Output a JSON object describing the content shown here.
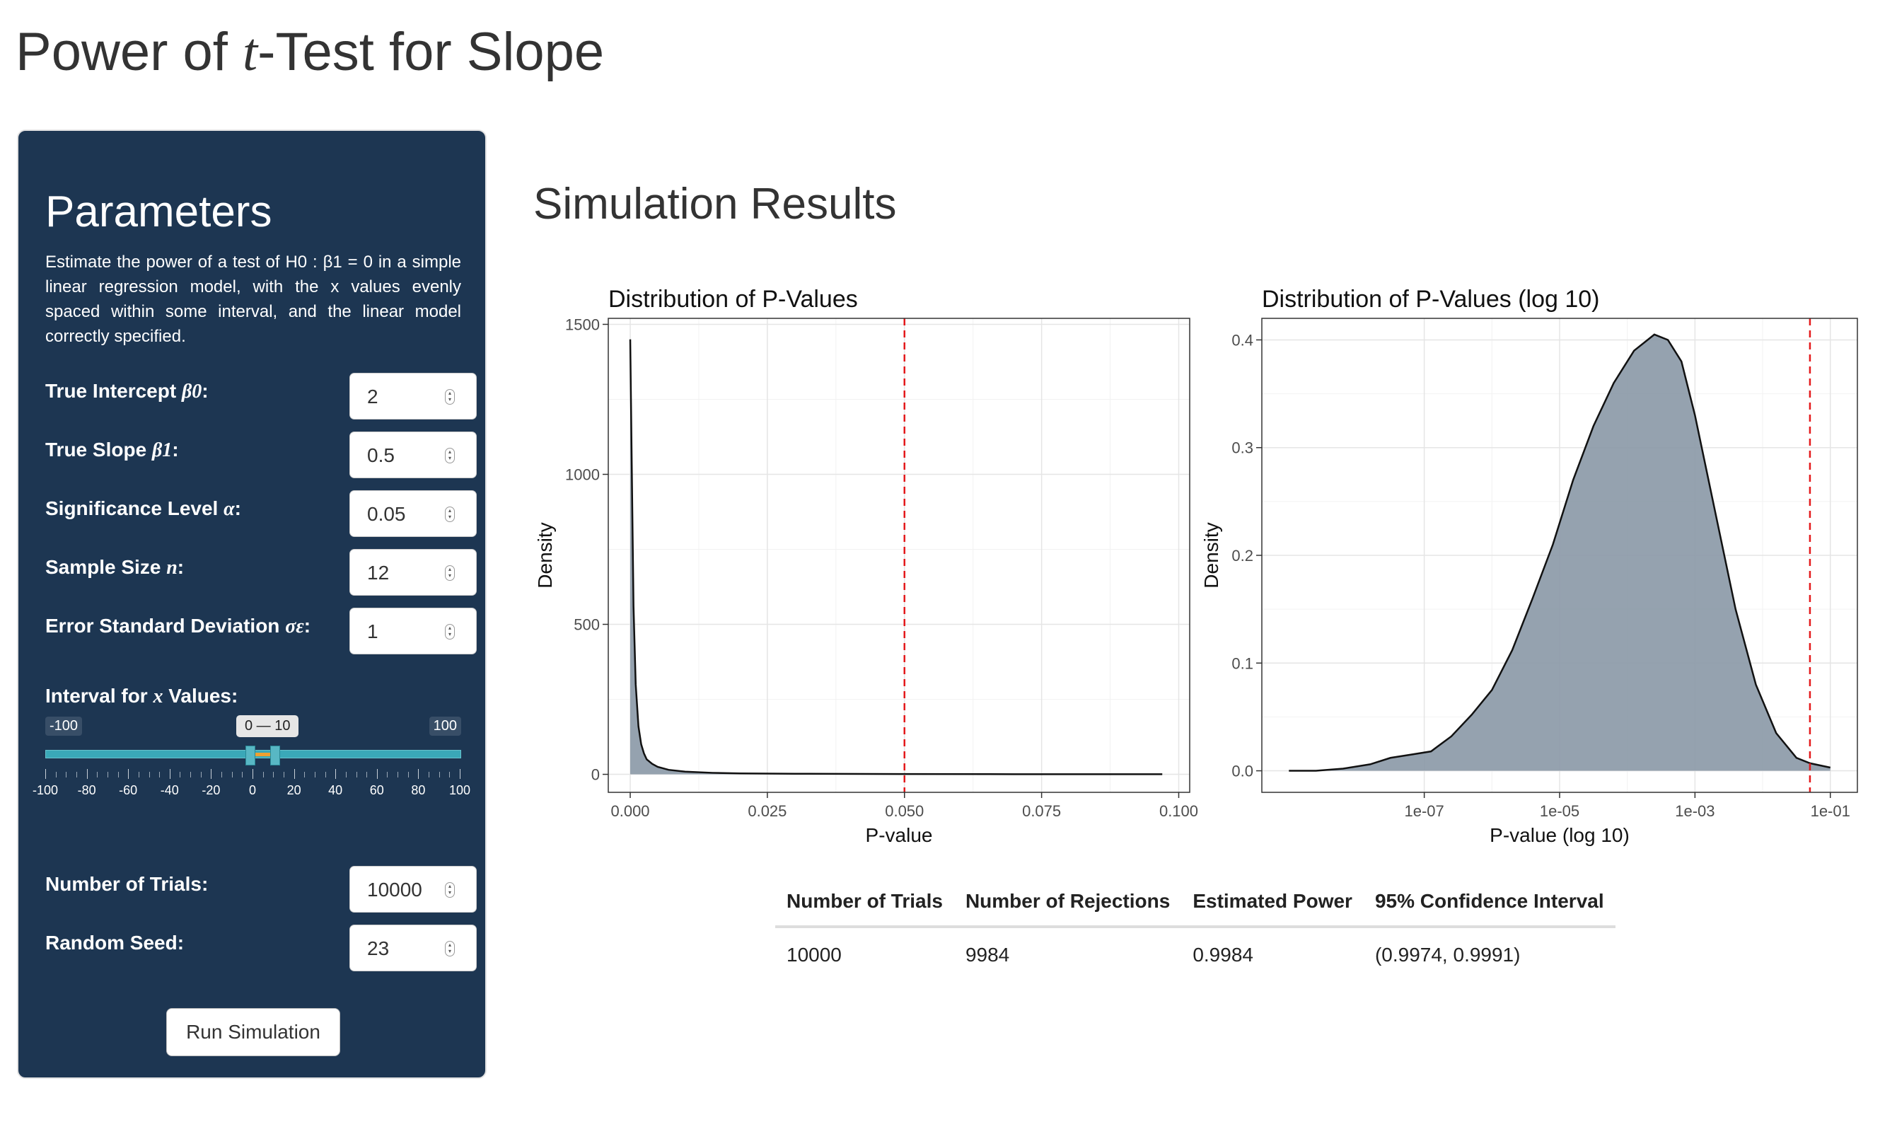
{
  "page": {
    "title_prefix": "Power of ",
    "title_var": "t",
    "title_suffix": "-Test for Slope"
  },
  "parameters": {
    "heading": "Parameters",
    "description": "Estimate the power of a test of H0 : β1 = 0 in a simple linear regression model, with the x values evenly spaced within some interval, and the linear model correctly specified.",
    "fields": [
      {
        "label_text": "True Intercept ",
        "label_math": "β0",
        "label_end": ":",
        "value": "2"
      },
      {
        "label_text": "True Slope ",
        "label_math": "β1",
        "label_end": ":",
        "value": "0.5"
      },
      {
        "label_text": "Significance Level ",
        "label_math": "α",
        "label_end": ":",
        "value": "0.05"
      },
      {
        "label_text": "Sample Size ",
        "label_math": "n",
        "label_end": ":",
        "value": "12"
      },
      {
        "label_text": "Error Standard Deviation ",
        "label_math": "σε",
        "label_end": ":",
        "value": "1"
      }
    ],
    "interval": {
      "label_text": "Interval for ",
      "label_math": "x",
      "label_end": " Values:",
      "min_label": "-100",
      "max_label": "100",
      "value_label": "0 — 10",
      "range_min": -100,
      "range_max": 100,
      "low": 0,
      "high": 10,
      "tick_labels": [
        "-100",
        "-80",
        "-60",
        "-40",
        "-20",
        "0",
        "20",
        "40",
        "60",
        "80",
        "100"
      ]
    },
    "trials": {
      "label": "Number of Trials:",
      "value": "10000"
    },
    "seed": {
      "label": "Random Seed:",
      "value": "23"
    },
    "run_label": "Run Simulation"
  },
  "results": {
    "heading": "Simulation Results",
    "table": {
      "headers": [
        "Number of Trials",
        "Number of Rejections",
        "Estimated Power",
        "95% Confidence Interval"
      ],
      "rows": [
        [
          "10000",
          "9984",
          "0.9984",
          "(0.9974, 0.9991)"
        ]
      ]
    }
  },
  "colors": {
    "panel_bg": "#1d3652",
    "density_fill": "#8a98a6",
    "reference_line": "#e41a1c",
    "slider_accent": "#3aa8b8"
  },
  "chart_data": [
    {
      "type": "area",
      "title": "Distribution of P-Values",
      "xlabel": "P-value",
      "ylabel": "Density",
      "xlim": [
        -0.004,
        0.102
      ],
      "ylim": [
        -60,
        1520
      ],
      "x_ticks": [
        0.0,
        0.025,
        0.05,
        0.075,
        0.1
      ],
      "x_tick_labels": [
        "0.000",
        "0.025",
        "0.050",
        "0.075",
        "0.100"
      ],
      "y_ticks": [
        0,
        500,
        1000,
        1500
      ],
      "y_tick_labels": [
        "0",
        "500",
        "1000",
        "1500"
      ],
      "reference_line_x": 0.05,
      "grid": true,
      "series": [
        {
          "x": [
            0.0,
            0.0003,
            0.0006,
            0.001,
            0.0015,
            0.002,
            0.0025,
            0.003,
            0.004,
            0.005,
            0.007,
            0.01,
            0.015,
            0.02,
            0.03,
            0.05,
            0.07,
            0.097
          ],
          "y": [
            1450,
            1000,
            560,
            300,
            160,
            100,
            70,
            50,
            35,
            25,
            15,
            9,
            5,
            3,
            2,
            1,
            0.5,
            0.3
          ]
        }
      ]
    },
    {
      "type": "area",
      "title": "Distribution of P-Values (log 10)",
      "xlabel": "P-value (log 10)",
      "ylabel": "Density",
      "xlim": [
        -9.4,
        -0.6
      ],
      "ylim": [
        -0.02,
        0.42
      ],
      "x_ticks": [
        -7,
        -5,
        -3,
        -1
      ],
      "x_tick_labels": [
        "1e-07",
        "1e-05",
        "1e-03",
        "1e-01"
      ],
      "y_ticks": [
        0.0,
        0.1,
        0.2,
        0.3,
        0.4
      ],
      "y_tick_labels": [
        "0.0",
        "0.1",
        "0.2",
        "0.3",
        "0.4"
      ],
      "reference_line_x": -1.301,
      "grid": true,
      "series": [
        {
          "x": [
            -9.0,
            -8.6,
            -8.2,
            -7.8,
            -7.5,
            -7.2,
            -6.9,
            -6.6,
            -6.3,
            -6.0,
            -5.7,
            -5.4,
            -5.1,
            -4.8,
            -4.5,
            -4.2,
            -3.9,
            -3.6,
            -3.4,
            -3.2,
            -3.0,
            -2.7,
            -2.4,
            -2.1,
            -1.8,
            -1.5,
            -1.3,
            -1.0
          ],
          "y": [
            0.0,
            0.0,
            0.002,
            0.006,
            0.012,
            0.015,
            0.018,
            0.032,
            0.052,
            0.075,
            0.112,
            0.16,
            0.21,
            0.27,
            0.32,
            0.36,
            0.39,
            0.405,
            0.4,
            0.38,
            0.33,
            0.24,
            0.15,
            0.08,
            0.035,
            0.012,
            0.007,
            0.003
          ]
        }
      ]
    }
  ]
}
